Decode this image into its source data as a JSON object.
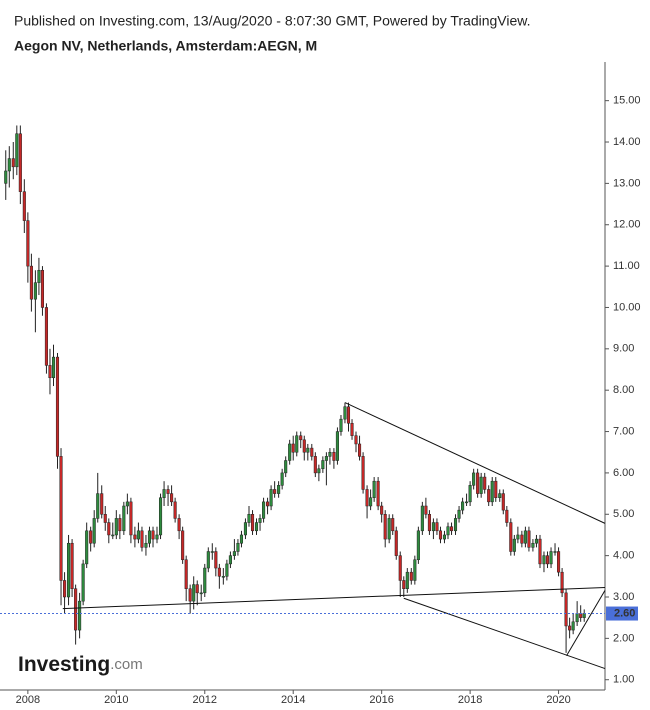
{
  "chart_data": {
    "type": "candlestick",
    "header": "Published on Investing.com, 13/Aug/2020 - 8:07:30 GMT, Powered by TradingView.",
    "title": "Aegon NV, Netherlands, Amsterdam:AEGN, M",
    "logo": "Investing",
    "logo_suffix": ".com",
    "up_color": "#2e8b3e",
    "down_color": "#c62828",
    "xlim": [
      2007.37,
      2021.05
    ],
    "ylim": [
      0.5,
      15.85
    ],
    "xticks": [
      2008,
      2010,
      2012,
      2014,
      2016,
      2018,
      2020
    ],
    "yticks": [
      {
        "value": 1,
        "label": "1.00"
      },
      {
        "value": 2,
        "label": "2.00"
      },
      {
        "value": 3,
        "label": "3.00"
      },
      {
        "value": 4,
        "label": "4.00"
      },
      {
        "value": 5,
        "label": "5.00"
      },
      {
        "value": 6,
        "label": "6.00"
      },
      {
        "value": 7,
        "label": "7.00"
      },
      {
        "value": 8,
        "label": "8.00"
      },
      {
        "value": 9,
        "label": "9.00"
      },
      {
        "value": 10,
        "label": "10.00"
      },
      {
        "value": 11,
        "label": "11.00"
      },
      {
        "value": 12,
        "label": "12.00"
      },
      {
        "value": 13,
        "label": "13.00"
      },
      {
        "value": 14,
        "label": "14.00"
      },
      {
        "value": 15,
        "label": "15.00"
      }
    ],
    "last_price": {
      "value": 2.6,
      "label": "2.60",
      "color": "#4a6fd8"
    },
    "trendlines": [
      {
        "x1": 2015.17,
        "y1": 7.7,
        "x2": 2021.05,
        "y2": 4.78
      },
      {
        "x1": 2008.79,
        "y1": 2.72,
        "x2": 2021.05,
        "y2": 3.23
      },
      {
        "x1": 2016.5,
        "y1": 2.97,
        "x2": 2021.05,
        "y2": 1.27
      },
      {
        "x1": 2020.18,
        "y1": 1.58,
        "x2": 2021.05,
        "y2": 3.16
      }
    ],
    "x": [
      2007.5,
      2007.58,
      2007.67,
      2007.75,
      2007.83,
      2007.92,
      2008,
      2008.08,
      2008.17,
      2008.25,
      2008.33,
      2008.42,
      2008.5,
      2008.58,
      2008.67,
      2008.75,
      2008.83,
      2008.92,
      2009,
      2009.08,
      2009.17,
      2009.25,
      2009.33,
      2009.42,
      2009.5,
      2009.58,
      2009.67,
      2009.75,
      2009.83,
      2009.92,
      2010,
      2010.08,
      2010.17,
      2010.25,
      2010.33,
      2010.42,
      2010.5,
      2010.58,
      2010.67,
      2010.75,
      2010.83,
      2010.92,
      2011,
      2011.08,
      2011.17,
      2011.25,
      2011.33,
      2011.42,
      2011.5,
      2011.58,
      2011.67,
      2011.75,
      2011.83,
      2011.92,
      2012,
      2012.08,
      2012.17,
      2012.25,
      2012.33,
      2012.42,
      2012.5,
      2012.58,
      2012.67,
      2012.75,
      2012.83,
      2012.92,
      2013,
      2013.08,
      2013.17,
      2013.25,
      2013.33,
      2013.42,
      2013.5,
      2013.58,
      2013.67,
      2013.75,
      2013.83,
      2013.92,
      2014,
      2014.08,
      2014.17,
      2014.25,
      2014.33,
      2014.42,
      2014.5,
      2014.58,
      2014.67,
      2014.75,
      2014.83,
      2014.92,
      2015,
      2015.08,
      2015.17,
      2015.25,
      2015.33,
      2015.42,
      2015.5,
      2015.58,
      2015.67,
      2015.75,
      2015.83,
      2015.92,
      2016,
      2016.08,
      2016.17,
      2016.25,
      2016.33,
      2016.42,
      2016.5,
      2016.58,
      2016.67,
      2016.75,
      2016.83,
      2016.92,
      2017,
      2017.08,
      2017.17,
      2017.25,
      2017.33,
      2017.42,
      2017.5,
      2017.58,
      2017.67,
      2017.75,
      2017.83,
      2017.92,
      2018,
      2018.08,
      2018.17,
      2018.25,
      2018.33,
      2018.42,
      2018.5,
      2018.58,
      2018.67,
      2018.75,
      2018.83,
      2018.92,
      2019,
      2019.08,
      2019.17,
      2019.25,
      2019.33,
      2019.42,
      2019.5,
      2019.58,
      2019.67,
      2019.75,
      2019.83,
      2019.92,
      2020,
      2020.08,
      2020.17,
      2020.25,
      2020.33,
      2020.42,
      2020.5,
      2020.58
    ],
    "candles": [
      [
        13.0,
        13.8,
        12.6,
        13.3
      ],
      [
        13.3,
        13.9,
        12.9,
        13.6
      ],
      [
        13.6,
        14.0,
        13.1,
        13.4
      ],
      [
        13.4,
        14.4,
        13.2,
        14.2
      ],
      [
        14.2,
        14.4,
        12.5,
        12.8
      ],
      [
        12.8,
        13.1,
        11.8,
        12.1
      ],
      [
        12.1,
        12.3,
        10.6,
        11.0
      ],
      [
        11.0,
        11.3,
        9.9,
        10.2
      ],
      [
        10.2,
        10.9,
        9.4,
        10.6
      ],
      [
        10.6,
        11.2,
        10.3,
        10.9
      ],
      [
        10.9,
        11.0,
        9.8,
        10.0
      ],
      [
        10.0,
        10.1,
        8.4,
        8.6
      ],
      [
        8.6,
        9.0,
        7.9,
        8.3
      ],
      [
        8.3,
        9.1,
        8.1,
        8.8
      ],
      [
        8.8,
        8.9,
        6.1,
        6.4
      ],
      [
        6.4,
        6.6,
        2.8,
        3.4
      ],
      [
        3.4,
        3.6,
        2.6,
        3.0
      ],
      [
        3.0,
        4.5,
        2.8,
        4.3
      ],
      [
        4.3,
        4.4,
        3.0,
        3.2
      ],
      [
        3.2,
        3.3,
        1.85,
        2.2
      ],
      [
        2.2,
        3.1,
        2.0,
        2.9
      ],
      [
        2.9,
        3.9,
        2.8,
        3.8
      ],
      [
        3.8,
        4.8,
        3.7,
        4.6
      ],
      [
        4.6,
        4.7,
        4.1,
        4.3
      ],
      [
        4.3,
        5.1,
        4.2,
        4.9
      ],
      [
        4.9,
        6.0,
        4.8,
        5.5
      ],
      [
        5.5,
        5.7,
        4.9,
        5.0
      ],
      [
        5.0,
        5.2,
        4.6,
        4.8
      ],
      [
        4.8,
        4.9,
        4.3,
        4.5
      ],
      [
        4.5,
        4.8,
        4.4,
        4.5
      ],
      [
        4.5,
        5.1,
        4.4,
        4.9
      ],
      [
        4.9,
        5.0,
        4.4,
        4.6
      ],
      [
        4.6,
        5.3,
        4.5,
        5.2
      ],
      [
        5.2,
        5.5,
        5.0,
        5.3
      ],
      [
        5.3,
        5.4,
        4.3,
        4.5
      ],
      [
        4.5,
        4.7,
        4.2,
        4.4
      ],
      [
        4.4,
        4.8,
        4.3,
        4.6
      ],
      [
        4.6,
        4.7,
        4.1,
        4.2
      ],
      [
        4.2,
        4.5,
        4.0,
        4.3
      ],
      [
        4.3,
        4.7,
        4.2,
        4.6
      ],
      [
        4.6,
        4.7,
        4.2,
        4.4
      ],
      [
        4.4,
        4.7,
        4.3,
        4.5
      ],
      [
        4.5,
        5.5,
        4.4,
        5.4
      ],
      [
        5.4,
        5.8,
        5.2,
        5.6
      ],
      [
        5.6,
        5.7,
        5.2,
        5.5
      ],
      [
        5.5,
        5.7,
        5.2,
        5.3
      ],
      [
        5.3,
        5.4,
        4.8,
        4.9
      ],
      [
        4.9,
        5.0,
        4.4,
        4.6
      ],
      [
        4.6,
        4.7,
        3.8,
        3.9
      ],
      [
        3.9,
        4.0,
        2.9,
        3.2
      ],
      [
        3.2,
        3.3,
        2.6,
        2.9
      ],
      [
        2.9,
        3.5,
        2.7,
        3.3
      ],
      [
        3.3,
        3.4,
        2.8,
        3.1
      ],
      [
        3.1,
        3.3,
        2.9,
        3.1
      ],
      [
        3.1,
        3.8,
        3.0,
        3.7
      ],
      [
        3.7,
        4.2,
        3.6,
        4.1
      ],
      [
        4.1,
        4.3,
        3.9,
        4.1
      ],
      [
        4.1,
        4.2,
        3.5,
        3.7
      ],
      [
        3.7,
        3.8,
        3.2,
        3.5
      ],
      [
        3.5,
        3.7,
        3.3,
        3.5
      ],
      [
        3.5,
        3.9,
        3.4,
        3.8
      ],
      [
        3.8,
        4.1,
        3.7,
        4.0
      ],
      [
        4.0,
        4.4,
        3.9,
        4.1
      ],
      [
        4.1,
        4.4,
        4.0,
        4.3
      ],
      [
        4.3,
        4.6,
        4.2,
        4.5
      ],
      [
        4.5,
        4.9,
        4.4,
        4.8
      ],
      [
        4.8,
        5.2,
        4.7,
        5.0
      ],
      [
        5.0,
        5.1,
        4.5,
        4.6
      ],
      [
        4.6,
        4.9,
        4.5,
        4.8
      ],
      [
        4.8,
        5.0,
        4.6,
        4.9
      ],
      [
        4.9,
        5.4,
        4.8,
        5.3
      ],
      [
        5.3,
        5.4,
        5.0,
        5.2
      ],
      [
        5.2,
        5.7,
        5.1,
        5.6
      ],
      [
        5.6,
        5.8,
        5.4,
        5.5
      ],
      [
        5.5,
        5.8,
        5.4,
        5.7
      ],
      [
        5.7,
        6.1,
        5.6,
        6.0
      ],
      [
        6.0,
        6.4,
        5.9,
        6.3
      ],
      [
        6.3,
        6.8,
        6.2,
        6.7
      ],
      [
        6.7,
        6.9,
        6.3,
        6.5
      ],
      [
        6.5,
        7.0,
        6.4,
        6.9
      ],
      [
        6.9,
        7.0,
        6.6,
        6.8
      ],
      [
        6.8,
        6.9,
        6.3,
        6.5
      ],
      [
        6.5,
        6.7,
        6.3,
        6.6
      ],
      [
        6.6,
        6.7,
        6.3,
        6.4
      ],
      [
        6.4,
        6.5,
        5.9,
        6.0
      ],
      [
        6.0,
        6.2,
        5.8,
        6.1
      ],
      [
        6.1,
        6.4,
        6.0,
        6.3
      ],
      [
        6.3,
        6.5,
        5.7,
        6.4
      ],
      [
        6.4,
        6.6,
        6.2,
        6.5
      ],
      [
        6.5,
        6.6,
        6.1,
        6.3
      ],
      [
        6.3,
        7.1,
        6.2,
        7.0
      ],
      [
        7.0,
        7.4,
        6.9,
        7.3
      ],
      [
        7.3,
        7.7,
        7.2,
        7.6
      ],
      [
        7.6,
        7.7,
        7.0,
        7.2
      ],
      [
        7.2,
        7.3,
        6.8,
        6.9
      ],
      [
        6.9,
        7.0,
        6.5,
        6.7
      ],
      [
        6.7,
        6.9,
        6.3,
        6.4
      ],
      [
        6.4,
        6.5,
        5.5,
        5.6
      ],
      [
        5.6,
        5.7,
        4.9,
        5.2
      ],
      [
        5.2,
        5.6,
        5.1,
        5.4
      ],
      [
        5.4,
        5.9,
        5.3,
        5.8
      ],
      [
        5.8,
        5.9,
        5.1,
        5.2
      ],
      [
        5.2,
        5.3,
        4.8,
        5.0
      ],
      [
        5.0,
        5.1,
        4.2,
        4.4
      ],
      [
        4.4,
        5.0,
        4.3,
        4.9
      ],
      [
        4.9,
        5.0,
        4.5,
        4.6
      ],
      [
        4.6,
        4.7,
        3.9,
        4.0
      ],
      [
        4.0,
        4.1,
        3.0,
        3.4
      ],
      [
        3.4,
        3.5,
        3.0,
        3.2
      ],
      [
        3.2,
        3.7,
        3.1,
        3.6
      ],
      [
        3.6,
        3.7,
        3.3,
        3.4
      ],
      [
        3.4,
        4.0,
        3.3,
        3.9
      ],
      [
        3.9,
        4.7,
        3.8,
        4.6
      ],
      [
        4.6,
        5.3,
        4.5,
        5.2
      ],
      [
        5.2,
        5.4,
        4.9,
        5.0
      ],
      [
        5.0,
        5.1,
        4.5,
        4.6
      ],
      [
        4.6,
        4.9,
        4.4,
        4.8
      ],
      [
        4.8,
        4.9,
        4.5,
        4.6
      ],
      [
        4.6,
        4.7,
        4.3,
        4.4
      ],
      [
        4.4,
        4.6,
        4.3,
        4.5
      ],
      [
        4.5,
        4.8,
        4.4,
        4.7
      ],
      [
        4.7,
        4.8,
        4.5,
        4.6
      ],
      [
        4.6,
        5.0,
        4.5,
        4.9
      ],
      [
        4.9,
        5.2,
        4.8,
        5.1
      ],
      [
        5.1,
        5.4,
        5.0,
        5.3
      ],
      [
        5.3,
        5.5,
        5.2,
        5.3
      ],
      [
        5.3,
        5.8,
        5.2,
        5.7
      ],
      [
        5.7,
        6.1,
        5.6,
        6.0
      ],
      [
        6.0,
        6.1,
        5.4,
        5.5
      ],
      [
        5.5,
        6.0,
        5.4,
        5.9
      ],
      [
        5.9,
        6.0,
        5.5,
        5.6
      ],
      [
        5.6,
        5.7,
        5.2,
        5.3
      ],
      [
        5.3,
        5.9,
        5.2,
        5.8
      ],
      [
        5.8,
        5.9,
        5.3,
        5.4
      ],
      [
        5.4,
        5.6,
        5.3,
        5.5
      ],
      [
        5.5,
        5.6,
        5.0,
        5.1
      ],
      [
        5.1,
        5.2,
        4.7,
        4.8
      ],
      [
        4.8,
        4.9,
        4.0,
        4.1
      ],
      [
        4.1,
        4.5,
        4.0,
        4.4
      ],
      [
        4.4,
        4.7,
        4.3,
        4.5
      ],
      [
        4.5,
        4.6,
        4.2,
        4.3
      ],
      [
        4.3,
        4.7,
        4.2,
        4.6
      ],
      [
        4.6,
        4.7,
        4.1,
        4.2
      ],
      [
        4.2,
        4.4,
        4.1,
        4.3
      ],
      [
        4.3,
        4.5,
        4.2,
        4.4
      ],
      [
        4.4,
        4.5,
        3.7,
        3.8
      ],
      [
        3.8,
        4.1,
        3.6,
        4.0
      ],
      [
        4.0,
        4.1,
        3.7,
        3.8
      ],
      [
        3.8,
        4.2,
        3.7,
        4.1
      ],
      [
        4.1,
        4.3,
        4.0,
        4.1
      ],
      [
        4.1,
        4.2,
        3.5,
        3.6
      ],
      [
        3.6,
        3.7,
        3.0,
        3.1
      ],
      [
        3.1,
        3.2,
        1.65,
        2.3
      ],
      [
        2.3,
        2.5,
        2.0,
        2.2
      ],
      [
        2.2,
        2.6,
        2.1,
        2.4
      ],
      [
        2.4,
        2.9,
        2.3,
        2.6
      ],
      [
        2.6,
        2.8,
        2.4,
        2.5
      ],
      [
        2.5,
        2.7,
        2.4,
        2.6
      ]
    ]
  }
}
